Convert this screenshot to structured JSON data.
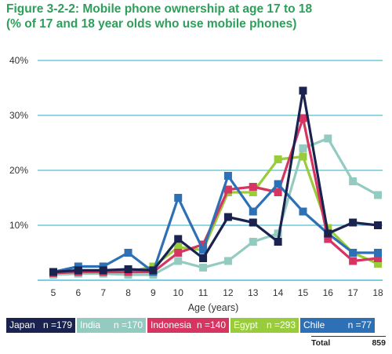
{
  "chart_data": {
    "type": "line",
    "title_line1": "Figure 3-2-2: Mobile phone ownership at age 17 to 18",
    "title_line2": "(% of 17 and 18 year olds who use mobile phones)",
    "xlabel": "Age (years)",
    "ylabel": "",
    "x": [
      5,
      6,
      7,
      8,
      9,
      10,
      11,
      12,
      13,
      14,
      15,
      16,
      17,
      18
    ],
    "y_ticks": [
      "40%",
      "30%",
      "20%",
      "10%"
    ],
    "ylim": [
      0,
      40
    ],
    "grid": true,
    "series": [
      {
        "name": "India",
        "n_label": "n =170",
        "color": "#94cbc1",
        "marker": "square",
        "values": [
          1.0,
          1.2,
          1.2,
          1.0,
          1.0,
          3.5,
          2.3,
          3.5,
          7.0,
          8.5,
          24.0,
          25.8,
          18.0,
          15.5
        ]
      },
      {
        "name": "Egypt",
        "n_label": "n =293",
        "color": "#99cc3a",
        "marker": "square",
        "values": [
          1.3,
          1.5,
          1.5,
          1.5,
          2.5,
          6.0,
          5.5,
          16.0,
          16.0,
          22.0,
          22.5,
          9.5,
          5.0,
          3.0
        ]
      },
      {
        "name": "Indonesia",
        "n_label": "n =140",
        "color": "#d63461",
        "marker": "square",
        "values": [
          1.3,
          1.5,
          1.5,
          1.5,
          1.5,
          5.0,
          6.5,
          16.5,
          17.0,
          16.0,
          29.5,
          7.5,
          3.5,
          4.0
        ]
      },
      {
        "name": "Chile",
        "n_label": "n =77",
        "color": "#2e70b6",
        "marker": "square",
        "values": [
          1.5,
          2.5,
          2.5,
          5.0,
          1.5,
          15.0,
          5.5,
          19.0,
          12.5,
          17.5,
          12.5,
          8.5,
          5.0,
          5.0
        ]
      },
      {
        "name": "Japan",
        "n_label": "n =179",
        "color": "#1a2250",
        "marker": "square",
        "values": [
          1.5,
          1.8,
          1.8,
          2.0,
          1.8,
          7.5,
          4.0,
          11.5,
          10.5,
          7.0,
          34.5,
          8.5,
          10.5,
          10.0
        ]
      }
    ],
    "legend_order": [
      "Japan",
      "India",
      "Indonesia",
      "Egypt",
      "Chile"
    ],
    "legend_placement": "bottom",
    "total_label": "Total",
    "total_value": "859"
  }
}
